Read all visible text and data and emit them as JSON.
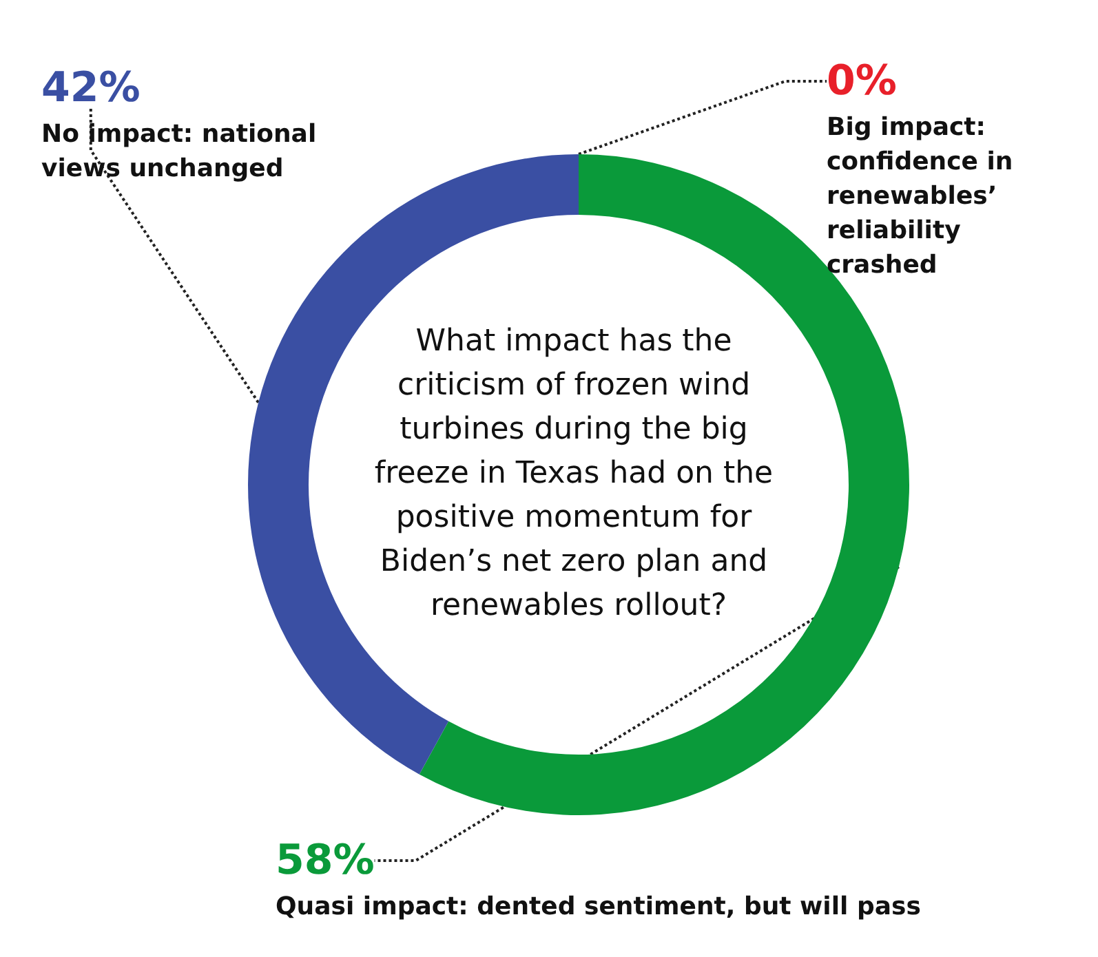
{
  "chart_data": {
    "type": "donut",
    "title": "What impact has the criticism of frozen wind turbines during the big freeze in Texas had on the positive momentum for Biden’s net zero plan and renewables rollout?",
    "categories": [
      "Big impact: confidence in renewables’ reliability crashed",
      "Quasi impact: dented sentiment, but will pass",
      "No impact: national views unchanged"
    ],
    "values": [
      0,
      58,
      42
    ],
    "value_labels": [
      "0%",
      "58%",
      "42%"
    ],
    "colors": [
      "#e8202a",
      "#0a9a3a",
      "#3a4fa3"
    ],
    "legend": false
  }
}
